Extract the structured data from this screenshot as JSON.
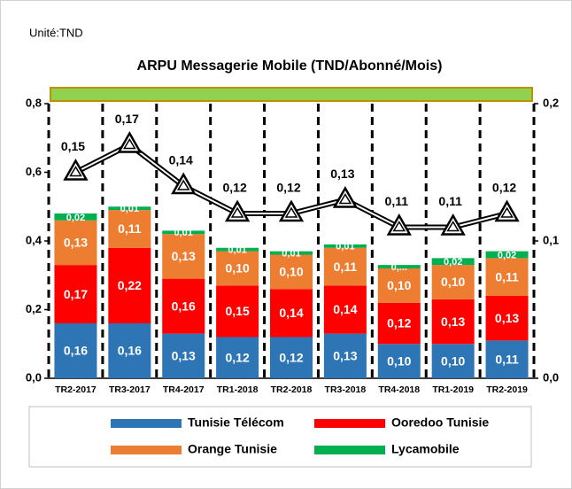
{
  "chart_data": {
    "type": "bar",
    "unit_note": "Unité:TND",
    "title": "ARPU Messagerie Mobile (TND/Abonné/Mois)",
    "categories": [
      "TR2-2017",
      "TR3-2017",
      "TR4-2017",
      "TR1-2018",
      "TR2-2018",
      "TR3-2018",
      "TR4-2018",
      "TR1-2019",
      "TR2-2019"
    ],
    "stacked": true,
    "series": [
      {
        "name": "Tunisie Télécom",
        "color": "#2e75b6",
        "values": [
          0.16,
          0.16,
          0.13,
          0.12,
          0.12,
          0.13,
          0.1,
          0.1,
          0.11
        ],
        "value_labels": [
          "0,16",
          "0,16",
          "0,13",
          "0,12",
          "0,12",
          "0,13",
          "0,10",
          "0,10",
          "0,11"
        ]
      },
      {
        "name": "Ooredoo Tunisie",
        "color": "#ff0000",
        "values": [
          0.17,
          0.22,
          0.16,
          0.15,
          0.14,
          0.14,
          0.12,
          0.13,
          0.13
        ],
        "value_labels": [
          "0,17",
          "0,22",
          "0,16",
          "0,15",
          "0,14",
          "0,14",
          "0,12",
          "0,13",
          "0,13"
        ]
      },
      {
        "name": "Orange Tunisie",
        "color": "#ed7d31",
        "values": [
          0.13,
          0.11,
          0.13,
          0.1,
          0.1,
          0.11,
          0.1,
          0.1,
          0.11
        ],
        "value_labels": [
          "0,13",
          "0,11",
          "0,13",
          "0,10",
          "0,10",
          "0,11",
          "0,10",
          "0,10",
          "0,11"
        ]
      },
      {
        "name": "Lycamobile",
        "color": "#00b050",
        "values": [
          0.02,
          0.01,
          0.01,
          0.01,
          0.01,
          0.01,
          0.01,
          0.02,
          0.02
        ],
        "value_labels": [
          "0,02",
          "0,01",
          "0,01",
          "0,01",
          "0,01",
          "0,01",
          "0,...",
          "0,02",
          "0,02"
        ]
      },
      {
        "type": "line",
        "axis": "y2",
        "color": "#000000",
        "values": [
          0.15,
          0.17,
          0.14,
          0.12,
          0.12,
          0.13,
          0.11,
          0.11,
          0.12
        ],
        "value_labels": [
          "0,15",
          "0,17",
          "0,14",
          "0,12",
          "0,12",
          "0,13",
          "0,11",
          "0,11",
          "0,12"
        ]
      }
    ],
    "ylim": [
      0,
      0.8
    ],
    "yticks": [
      {
        "value": 0,
        "label": "0,0"
      },
      {
        "value": 0.2,
        "label": "0,2"
      },
      {
        "value": 0.4,
        "label": "0,4"
      },
      {
        "value": 0.6,
        "label": "0,6"
      },
      {
        "value": 0.8,
        "label": "0,8"
      }
    ],
    "y2lim": [
      0,
      0.2
    ],
    "y2ticks": [
      {
        "value": 0,
        "label": "0,0"
      },
      {
        "value": 0.1,
        "label": "0,1"
      },
      {
        "value": 0.2,
        "label": "0,2"
      }
    ],
    "grid": false,
    "legend": "bottom"
  }
}
